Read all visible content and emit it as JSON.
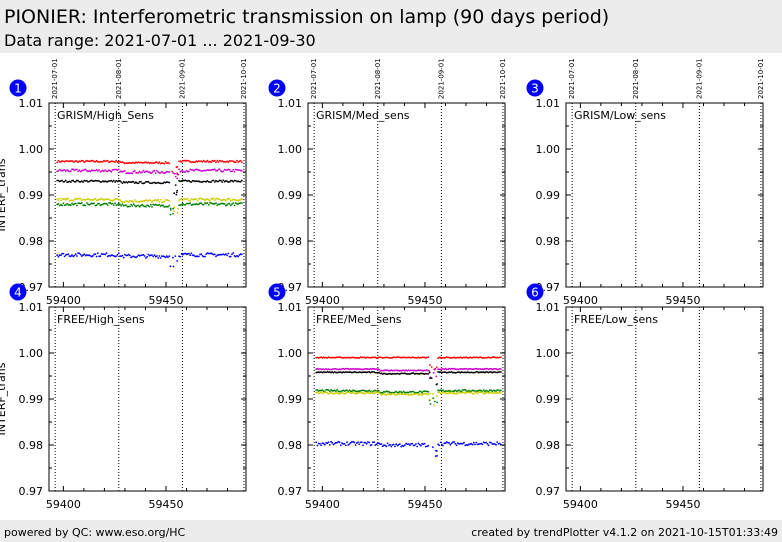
{
  "header": {
    "title": "PIONIER: Interferometric transmission on lamp (90 days period)",
    "subtitle": "Data range: 2021-07-01 ... 2021-09-30"
  },
  "footer": {
    "left": "powered by QC: www.eso.org/HC",
    "right": "created by trendPlotter v4.1.2 on 2021-10-15T01:33:49"
  },
  "chart_data": [
    {
      "type": "scatter",
      "panel_number": "1",
      "label": "GRISM/High_Sens",
      "ylabel": "INTERF_trans",
      "xlim": [
        59393,
        59489
      ],
      "ylim": [
        0.97,
        1.01
      ],
      "xticks": [
        59400,
        59450
      ],
      "yticks": [
        "0.97",
        "0.98",
        "0.99",
        "1.00",
        "1.01"
      ],
      "date_markers": [
        {
          "x": 59396,
          "label": "2021-07-01"
        },
        {
          "x": 59427,
          "label": "2021-08-01"
        },
        {
          "x": 59458,
          "label": "2021-09-01"
        },
        {
          "x": 59488,
          "label": "2021-10-01"
        }
      ],
      "series": [
        {
          "color": "#ff0000",
          "x_start": 59397,
          "x_end": 59487,
          "y": 0.9973,
          "noise": 0.0002
        },
        {
          "color": "#cc00cc",
          "x_start": 59397,
          "x_end": 59487,
          "y": 0.9953,
          "noise": 0.0003
        },
        {
          "color": "#000000",
          "x_start": 59397,
          "x_end": 59487,
          "y": 0.993,
          "noise": 0.0002
        },
        {
          "color": "#cccc00",
          "x_start": 59397,
          "x_end": 59487,
          "y": 0.989,
          "noise": 0.0003
        },
        {
          "color": "#008000",
          "x_start": 59397,
          "x_end": 59487,
          "y": 0.988,
          "noise": 0.0003
        },
        {
          "color": "#0000ff",
          "x_start": 59397,
          "x_end": 59487,
          "y": 0.977,
          "noise": 0.0004
        }
      ]
    },
    {
      "type": "scatter",
      "panel_number": "2",
      "label": "GRISM/Med_sens",
      "ylabel": "",
      "xlim": [
        59393,
        59489
      ],
      "ylim": [
        0.97,
        1.01
      ],
      "xticks": [
        59400,
        59450
      ],
      "yticks": [
        "0.97",
        "0.98",
        "0.99",
        "1.00",
        "1.01"
      ],
      "date_markers": [
        {
          "x": 59396,
          "label": "2021-07-01"
        },
        {
          "x": 59427,
          "label": "2021-08-01"
        },
        {
          "x": 59458,
          "label": "2021-09-01"
        },
        {
          "x": 59488,
          "label": "2021-10-01"
        }
      ],
      "series": []
    },
    {
      "type": "scatter",
      "panel_number": "3",
      "label": "GRISM/Low_sens",
      "ylabel": "",
      "xlim": [
        59393,
        59489
      ],
      "ylim": [
        0.97,
        1.01
      ],
      "xticks": [
        59400,
        59450
      ],
      "yticks": [
        "0.97",
        "0.98",
        "0.99",
        "1.00",
        "1.01"
      ],
      "date_markers": [
        {
          "x": 59396,
          "label": "2021-07-01"
        },
        {
          "x": 59427,
          "label": "2021-08-01"
        },
        {
          "x": 59458,
          "label": "2021-09-01"
        },
        {
          "x": 59488,
          "label": "2021-10-01"
        }
      ],
      "series": []
    },
    {
      "type": "scatter",
      "panel_number": "4",
      "label": "FREE/High_sens",
      "ylabel": "INTERF_trans",
      "xlim": [
        59393,
        59489
      ],
      "ylim": [
        0.97,
        1.01
      ],
      "xticks": [
        59400,
        59450
      ],
      "yticks": [
        "0.97",
        "0.98",
        "0.99",
        "1.00",
        "1.01"
      ],
      "date_markers": [
        {
          "x": 59396
        },
        {
          "x": 59427
        },
        {
          "x": 59458
        },
        {
          "x": 59488
        }
      ],
      "series": []
    },
    {
      "type": "scatter",
      "panel_number": "5",
      "label": "FREE/Med_sens",
      "ylabel": "",
      "xlim": [
        59393,
        59489
      ],
      "ylim": [
        0.97,
        1.01
      ],
      "xticks": [
        59400,
        59450
      ],
      "yticks": [
        "0.97",
        "0.98",
        "0.99",
        "1.00",
        "1.01"
      ],
      "date_markers": [
        {
          "x": 59396
        },
        {
          "x": 59427
        },
        {
          "x": 59458
        },
        {
          "x": 59488
        }
      ],
      "series": [
        {
          "color": "#ff0000",
          "x_start": 59397,
          "x_end": 59487,
          "y": 0.999,
          "noise": 0.0001
        },
        {
          "color": "#cc00cc",
          "x_start": 59397,
          "x_end": 59487,
          "y": 0.9965,
          "noise": 0.0001
        },
        {
          "color": "#000000",
          "x_start": 59397,
          "x_end": 59487,
          "y": 0.9958,
          "noise": 0.0001
        },
        {
          "color": "#008000",
          "x_start": 59397,
          "x_end": 59487,
          "y": 0.9918,
          "noise": 0.0002
        },
        {
          "color": "#cccc00",
          "x_start": 59397,
          "x_end": 59487,
          "y": 0.9913,
          "noise": 0.0002
        },
        {
          "color": "#0000ff",
          "x_start": 59397,
          "x_end": 59487,
          "y": 0.9803,
          "noise": 0.0004
        }
      ]
    },
    {
      "type": "scatter",
      "panel_number": "6",
      "label": "FREE/Low_sens",
      "ylabel": "",
      "xlim": [
        59393,
        59489
      ],
      "ylim": [
        0.97,
        1.01
      ],
      "xticks": [
        59400,
        59450
      ],
      "yticks": [
        "0.97",
        "0.98",
        "0.99",
        "1.00",
        "1.01"
      ],
      "date_markers": [
        {
          "x": 59396
        },
        {
          "x": 59427
        },
        {
          "x": 59458
        },
        {
          "x": 59488
        }
      ],
      "series": []
    }
  ]
}
